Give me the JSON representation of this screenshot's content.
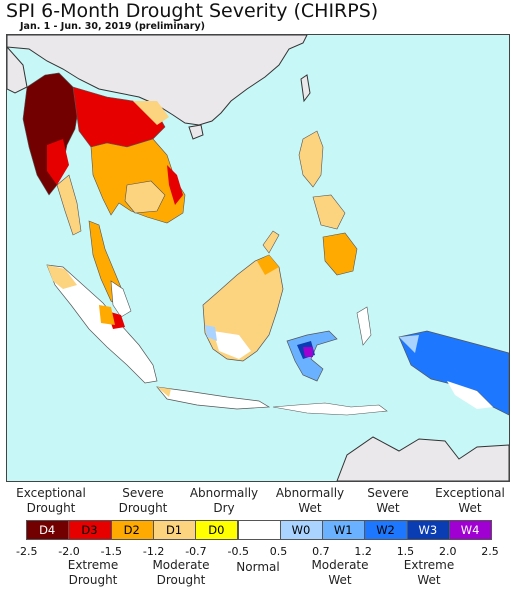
{
  "title": "SPI 6-Month Drought Severity (CHIRPS)",
  "subtitle": "Jan. 1 - Jun. 30, 2019 (preliminary)",
  "legend": {
    "upper_labels": [
      {
        "text": "Exceptional\nDrought"
      },
      {
        "text": "Severe\nDrought"
      },
      {
        "text": "Abnormally\nDry"
      },
      {
        "text": "Abnormally\nWet"
      },
      {
        "text": "Severe\nWet"
      },
      {
        "text": "Exceptional\nWet"
      }
    ],
    "lower_labels": [
      {
        "text": "Extreme\nDrought"
      },
      {
        "text": "Moderate\nDrought"
      },
      {
        "text": "Normal"
      },
      {
        "text": "Moderate\nWet"
      },
      {
        "text": "Extreme\nWet"
      }
    ],
    "categories": [
      {
        "code": "D4",
        "color": "#730000"
      },
      {
        "code": "D3",
        "color": "#e60000"
      },
      {
        "code": "D2",
        "color": "#ffaa00"
      },
      {
        "code": "D1",
        "color": "#fcd37f"
      },
      {
        "code": "D0",
        "color": "#ffff00"
      },
      {
        "code": "",
        "color": "#ffffff"
      },
      {
        "code": "W0",
        "color": "#aad4ff"
      },
      {
        "code": "W1",
        "color": "#6ab2ff"
      },
      {
        "code": "W2",
        "color": "#1e78ff"
      },
      {
        "code": "W3",
        "color": "#0a3cb4"
      },
      {
        "code": "W4",
        "color": "#a000d2"
      }
    ],
    "ticks": [
      "-2.5",
      "-2.0",
      "-1.5",
      "-1.2",
      "-0.7",
      "-0.5",
      "0.5",
      "0.7",
      "1.2",
      "1.5",
      "2.0",
      "2.5"
    ]
  },
  "map_colors": {
    "ocean": "#c8f7f7",
    "land_outside": "#ebe8ec",
    "border": "#555555"
  }
}
